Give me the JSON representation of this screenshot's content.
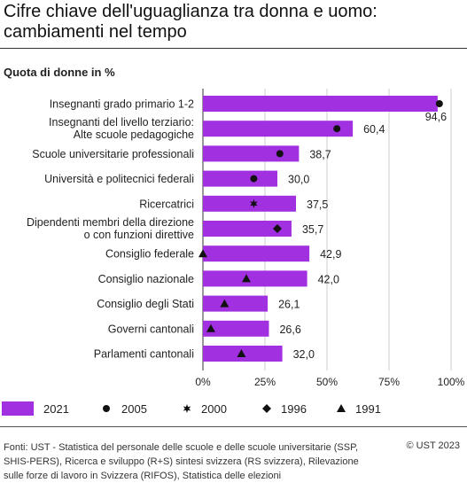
{
  "title": "Cifre chiave dell'uguaglianza tra donna e uomo: cambiamenti nel tempo",
  "subtitle": "Quota di donne in %",
  "source": "Fonti: UST - Statistica del personale delle scuole e delle scuole universitarie (SSP, SHIS-PERS), Ricerca e sviluppo (R+S) sintesi svizzera (RS svizzera), Rilevazione sulle forze di lavoro in Svizzera (RIFOS), Statistica delle elezioni",
  "copyright": "© UST 2023",
  "colors": {
    "bar": "#a030e0",
    "marker": "#111111",
    "grid": "#cccccc",
    "axis": "#333333"
  },
  "chart_data": {
    "type": "bar",
    "orientation": "horizontal",
    "categories": [
      [
        "Insegnanti grado primario 1-2"
      ],
      [
        "Insegnanti del livello terziario:",
        "Alte scuole pedagogiche"
      ],
      [
        "Scuole universitarie professionali"
      ],
      [
        "Università e politecnici federali"
      ],
      [
        "Ricercatrici"
      ],
      [
        "Dipendenti membri della direzione",
        "o con funzioni direttive"
      ],
      [
        "Consiglio federale"
      ],
      [
        "Consiglio nazionale"
      ],
      [
        "Consiglio degli Stati"
      ],
      [
        "Governi cantonali"
      ],
      [
        "Parlamenti cantonali"
      ]
    ],
    "xlim": [
      0,
      100
    ],
    "x_ticks": [
      0,
      25,
      50,
      75,
      100
    ],
    "x_tick_labels": [
      "0%",
      "25%",
      "50%",
      "75%",
      "100%"
    ],
    "grid": true,
    "legend_position": "bottom",
    "series": [
      {
        "name": "2021",
        "kind": "bar",
        "values": [
          94.6,
          60.4,
          38.7,
          30.0,
          37.5,
          35.7,
          42.9,
          42.0,
          26.1,
          26.6,
          32.0
        ],
        "labels": [
          "94,6",
          "60,4",
          "38,7",
          "30,0",
          "37,5",
          "35,7",
          "42,9",
          "42,0",
          "26,1",
          "26,6",
          "32,0"
        ]
      },
      {
        "name": "2005",
        "kind": "marker",
        "symbol": "circle",
        "values": [
          95.3,
          54,
          31,
          20.5,
          null,
          null,
          null,
          null,
          null,
          null,
          null
        ]
      },
      {
        "name": "2000",
        "kind": "marker",
        "symbol": "star",
        "values": [
          null,
          null,
          null,
          null,
          20.5,
          null,
          null,
          null,
          null,
          null,
          null
        ]
      },
      {
        "name": "1996",
        "kind": "marker",
        "symbol": "diamond",
        "values": [
          null,
          null,
          null,
          null,
          null,
          30,
          null,
          null,
          null,
          null,
          null
        ]
      },
      {
        "name": "1991",
        "kind": "marker",
        "symbol": "triangle",
        "values": [
          null,
          null,
          null,
          null,
          null,
          null,
          0,
          17.5,
          8.7,
          3.2,
          15.5
        ]
      }
    ]
  }
}
